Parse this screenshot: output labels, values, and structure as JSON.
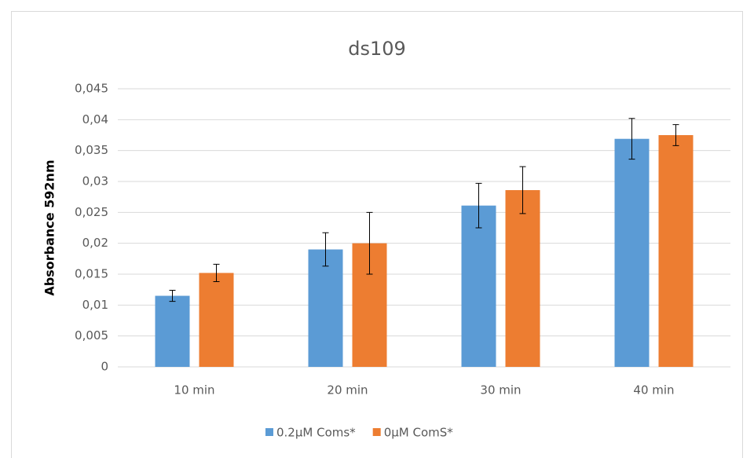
{
  "chart_data": {
    "type": "bar",
    "title": "ds109",
    "y_label": "Absorbance 592nm",
    "categories": [
      "10 min",
      "20 min",
      "30 min",
      "40 min"
    ],
    "series": [
      {
        "name": "0.2µM Coms*",
        "color": "#5b9bd5",
        "values": [
          0.0115,
          0.019,
          0.0261,
          0.0369
        ],
        "errors": [
          0.0009,
          0.0027,
          0.0036,
          0.0033
        ]
      },
      {
        "name": "0µM ComS*",
        "color": "#ed7d31",
        "values": [
          0.0152,
          0.02,
          0.0286,
          0.0375
        ],
        "errors": [
          0.0014,
          0.005,
          0.0038,
          0.0017
        ]
      }
    ],
    "ylim": [
      0,
      0.045
    ],
    "yticks": [
      0,
      {
        "value": 0.005,
        "label": "0,005"
      },
      {
        "value": 0.01,
        "label": "0,01"
      },
      {
        "value": 0.015,
        "label": "0,015"
      },
      {
        "value": 0.02,
        "label": "0,02"
      },
      {
        "value": 0.025,
        "label": "0,025"
      },
      {
        "value": 0.03,
        "label": "0,03"
      },
      {
        "value": 0.035,
        "label": "0,035"
      },
      {
        "value": 0.04,
        "label": "0,04"
      },
      {
        "value": 0.045,
        "label": "0,045"
      }
    ],
    "grid": true,
    "legend": "bottom"
  }
}
